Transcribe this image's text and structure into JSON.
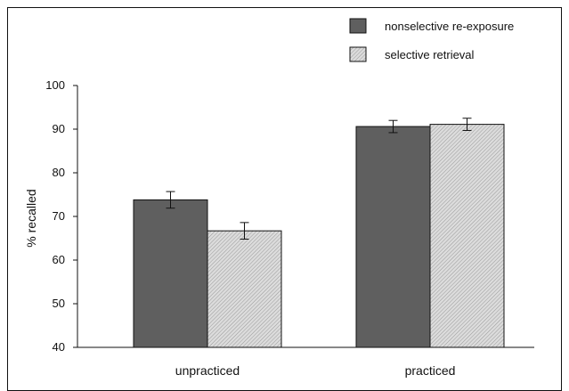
{
  "colors": {
    "frame": "#111111",
    "series_nonselective": "#5f5f5f",
    "series_selective_base": "#dcdcdc",
    "series_selective_hatch": "#9a9a9a",
    "error_bar": "#111111"
  },
  "chart_data": {
    "type": "bar",
    "title": "",
    "xlabel": "",
    "ylabel": "% recalled",
    "ylim": [
      40,
      100
    ],
    "yticks": [
      40,
      50,
      60,
      70,
      80,
      90,
      100
    ],
    "categories": [
      "unpracticed",
      "practiced"
    ],
    "series": [
      {
        "name": "nonselective re-exposure",
        "fill": "solid-gray",
        "values": [
          73.8,
          90.6
        ],
        "error": [
          1.9,
          1.4
        ]
      },
      {
        "name": "selective retrieval",
        "fill": "hatched-light-gray",
        "values": [
          66.7,
          91.1
        ],
        "error": [
          1.9,
          1.4
        ]
      }
    ],
    "legend": {
      "position": "top-right"
    },
    "grid": false
  }
}
